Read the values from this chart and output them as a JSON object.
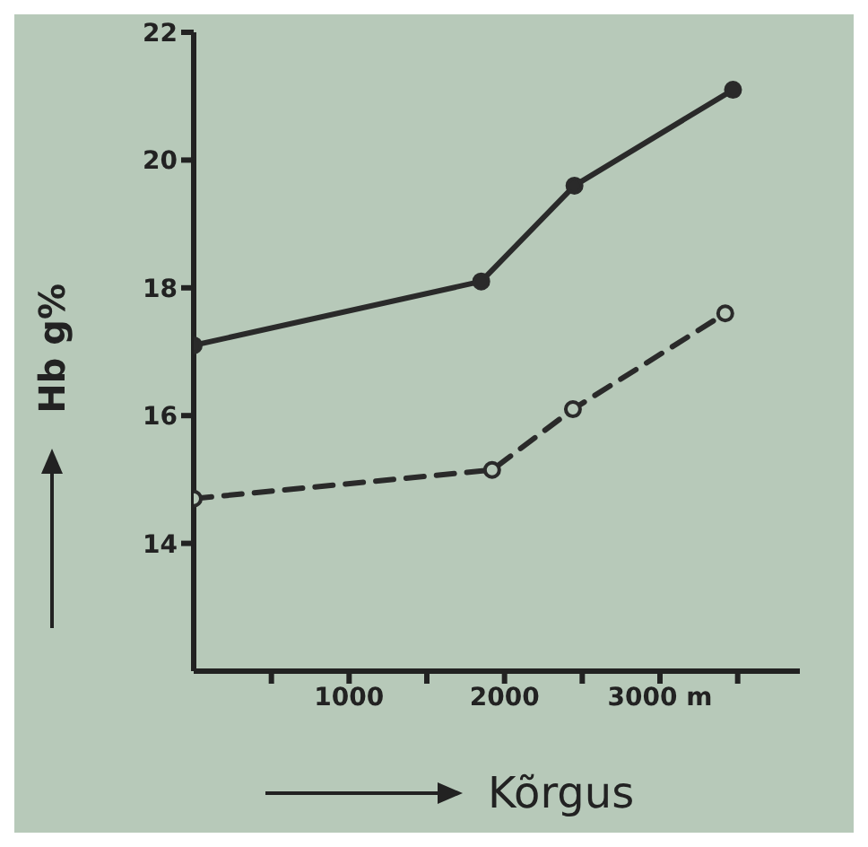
{
  "chart_data": {
    "type": "line",
    "xlabel": "Kõrgus",
    "ylabel": "Hb g%",
    "x": [
      0,
      1850,
      2450,
      3470
    ],
    "series": [
      {
        "color": "#2a2a2a",
        "line_style": "solid",
        "values": [
          17.1,
          18.1,
          19.6,
          21.1
        ]
      },
      {
        "color": "#2a2a2a",
        "line_style": "dashed",
        "x": [
          0,
          1920,
          2440,
          3420
        ],
        "values": [
          14.7,
          15.15,
          16.1,
          17.6
        ]
      }
    ],
    "xlim": [
      0,
      3900
    ],
    "ylim": [
      12,
      22
    ],
    "xticks": [
      {
        "value": 500,
        "label": null
      },
      1000,
      {
        "value": 1500,
        "label": null
      },
      2000,
      {
        "value": 2500,
        "label": null
      },
      {
        "value": 3000,
        "label": "3000 m"
      },
      {
        "value": 3500,
        "label": null
      }
    ],
    "yticks": [
      14,
      16,
      18,
      20,
      22
    ],
    "marker": "circle",
    "grid": false,
    "legend": false
  }
}
